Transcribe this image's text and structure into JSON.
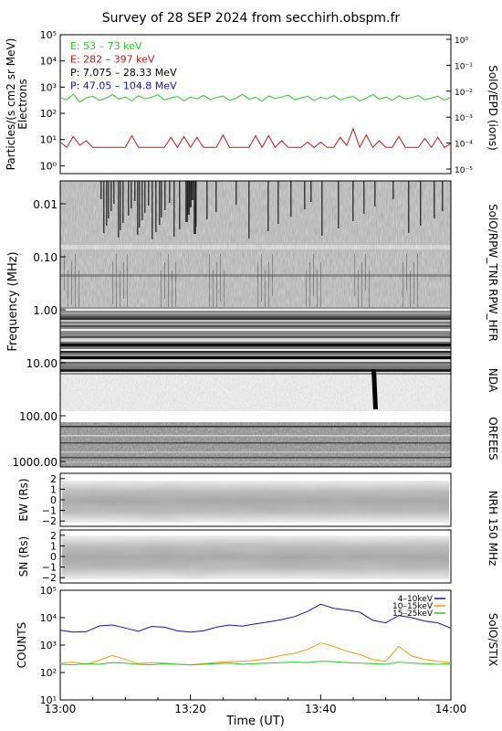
{
  "title": "Survey of 28 SEP 2024 from secchirh.obspm.fr",
  "xaxis": {
    "label": "Time (UT)",
    "ticks": [
      "13:00",
      "13:20",
      "13:40",
      "14:00"
    ]
  },
  "chart_data": [
    {
      "type": "line",
      "panel": "SolO/EPD",
      "title": "",
      "ylabel": "Particles/(s cm2 sr MeV)",
      "ylabel2": "Electrons",
      "right_label": "SolO/EPD (ions)",
      "yscale": "log",
      "ylim": [
        0.5,
        100000
      ],
      "y_ticks": [
        "10⁰",
        "10¹",
        "10²",
        "10³",
        "10⁴",
        "10⁵"
      ],
      "y2_ticks": [
        "10⁻⁵",
        "10⁻⁴",
        "10⁻³",
        "10⁻²",
        "10⁻¹",
        "10⁰"
      ],
      "legend": [
        {
          "label": "E: 53 – 73 keV",
          "color": "#22cc22"
        },
        {
          "label": "E: 282 – 397 keV",
          "color": "#cc1111"
        },
        {
          "label": "P: 7.075 – 28.33 MeV",
          "color": "#000000"
        },
        {
          "label": "P: 47.05 – 104.8 MeV",
          "color": "#1111bb"
        }
      ],
      "series": [
        {
          "name": "E: 53 – 73 keV",
          "color": "#22cc22",
          "x_min": [
            0,
            1,
            2,
            3,
            4,
            5,
            6,
            7,
            8,
            9,
            10,
            11,
            12,
            13,
            14,
            15,
            16,
            17,
            18,
            19,
            20,
            21,
            22,
            23,
            24,
            25,
            26,
            27,
            28,
            29,
            30,
            31,
            32,
            33,
            34,
            35,
            36,
            37,
            38,
            39,
            40,
            41,
            42,
            43,
            44,
            45,
            46,
            47,
            48,
            49,
            50,
            51,
            52,
            53,
            54,
            55,
            56,
            57,
            58,
            59,
            60
          ],
          "values": [
            400,
            330,
            540,
            270,
            390,
            450,
            310,
            380,
            520,
            350,
            420,
            300,
            470,
            360,
            410,
            510,
            330,
            390,
            440,
            300,
            420,
            360,
            480,
            340,
            400,
            460,
            310,
            380,
            530,
            350,
            410,
            290,
            460,
            370,
            420,
            500,
            330,
            390,
            450,
            310,
            410,
            360,
            470,
            330,
            400,
            440,
            300,
            380,
            520,
            350,
            420,
            310,
            460,
            360,
            400,
            480,
            330,
            390,
            450,
            320,
            410
          ]
        },
        {
          "name": "E: 282 – 397 keV",
          "color": "#cc1111",
          "x_min": [
            0,
            1,
            2,
            3,
            4,
            5,
            6,
            7,
            8,
            9,
            10,
            11,
            12,
            13,
            14,
            15,
            16,
            17,
            18,
            19,
            20,
            21,
            22,
            23,
            24,
            25,
            26,
            27,
            28,
            29,
            30,
            31,
            32,
            33,
            34,
            35,
            36,
            37,
            38,
            39,
            40,
            41,
            42,
            43,
            44,
            45,
            46,
            47,
            48,
            49,
            50,
            51,
            52,
            53,
            54,
            55,
            56,
            57,
            58,
            59,
            60
          ],
          "values": [
            8,
            5,
            13,
            6,
            9,
            5,
            5,
            5,
            5,
            5,
            5,
            14,
            5,
            5,
            5,
            5,
            5,
            12,
            5,
            13,
            5,
            12,
            5,
            5,
            5,
            15,
            5,
            5,
            5,
            5,
            14,
            5,
            14,
            5,
            9,
            5,
            5,
            5,
            8,
            5,
            8,
            5,
            5,
            12,
            6,
            26,
            5,
            15,
            5,
            9,
            5,
            5,
            13,
            5,
            5,
            5,
            11,
            5,
            12,
            5,
            7
          ]
        }
      ]
    },
    {
      "type": "heatmap",
      "panel": "SolO/RPW_TNR",
      "ylabel": "Frequency (MHz)",
      "right_label": "SolO/RPW_TNR",
      "y_ticks": [
        "0.01",
        "0.10",
        "1.00"
      ]
    },
    {
      "type": "heatmap",
      "panel": "RPW_HFR",
      "right_label": "RPW_HFR",
      "y_ticks": [
        "10.00"
      ]
    },
    {
      "type": "heatmap",
      "panel": "NDA",
      "right_label": "NDA",
      "y_ticks": [
        "100.00"
      ]
    },
    {
      "type": "heatmap",
      "panel": "ORFEES",
      "right_label": "ORFEES",
      "y_ticks": [
        "1000.00"
      ]
    },
    {
      "type": "heatmap",
      "panel": "NRH EW",
      "ylabel": "EW (Rs)",
      "right_label": "NRH 150 MHz",
      "ylim": [
        -2.5,
        2.5
      ],
      "y_ticks": [
        "2",
        "1",
        "0",
        "−1",
        "−2"
      ]
    },
    {
      "type": "heatmap",
      "panel": "NRH SN",
      "ylabel": "SN (Rs)",
      "ylim": [
        -2.5,
        2.5
      ],
      "y_ticks": [
        "2",
        "1",
        "0",
        "−1",
        "−2"
      ]
    },
    {
      "type": "line",
      "panel": "SolO/STIX",
      "ylabel": "COUNTS",
      "right_label": "SolO/STIX",
      "yscale": "log",
      "ylim": [
        10,
        100000
      ],
      "y_ticks": [
        "10¹",
        "10²",
        "10³",
        "10⁴",
        "10⁵"
      ],
      "legend": [
        {
          "label": "4–10keV",
          "color": "#1111bb"
        },
        {
          "label": "10–15keV",
          "color": "#ff9900"
        },
        {
          "label": "15–25keV",
          "color": "#22cc22"
        }
      ],
      "series": [
        {
          "name": "4–10keV",
          "color": "#1111bb",
          "x_min": [
            0,
            2,
            4,
            6,
            8,
            10,
            12,
            14,
            16,
            18,
            20,
            22,
            24,
            26,
            28,
            30,
            32,
            34,
            36,
            38,
            40,
            42,
            44,
            46,
            48,
            50,
            52,
            54,
            56,
            58,
            60
          ],
          "values": [
            3500,
            3000,
            3100,
            5000,
            5400,
            4200,
            3200,
            4800,
            4500,
            3300,
            3000,
            3300,
            4500,
            5400,
            4900,
            6000,
            7000,
            8500,
            11000,
            17000,
            31000,
            22000,
            19000,
            16000,
            8000,
            6500,
            12000,
            10000,
            7500,
            6500,
            4200
          ]
        },
        {
          "name": "10–15keV",
          "color": "#ff9900",
          "x_min": [
            0,
            2,
            4,
            6,
            8,
            10,
            12,
            14,
            16,
            18,
            20,
            22,
            24,
            26,
            28,
            30,
            32,
            34,
            36,
            38,
            40,
            42,
            44,
            46,
            48,
            50,
            52,
            54,
            56,
            58,
            60
          ],
          "values": [
            220,
            240,
            200,
            280,
            420,
            300,
            210,
            230,
            220,
            200,
            190,
            210,
            230,
            250,
            260,
            280,
            330,
            420,
            500,
            700,
            1200,
            900,
            600,
            450,
            300,
            260,
            900,
            400,
            300,
            260,
            230
          ]
        },
        {
          "name": "15–25keV",
          "color": "#22cc22",
          "x_min": [
            0,
            2,
            4,
            6,
            8,
            10,
            12,
            14,
            16,
            18,
            20,
            22,
            24,
            26,
            28,
            30,
            32,
            34,
            36,
            38,
            40,
            42,
            44,
            46,
            48,
            50,
            52,
            54,
            56,
            58,
            60
          ],
          "values": [
            200,
            190,
            210,
            200,
            230,
            220,
            200,
            190,
            210,
            200,
            190,
            200,
            210,
            220,
            200,
            210,
            220,
            230,
            240,
            230,
            260,
            250,
            230,
            220,
            210,
            200,
            240,
            220,
            210,
            200,
            210
          ]
        }
      ]
    }
  ]
}
